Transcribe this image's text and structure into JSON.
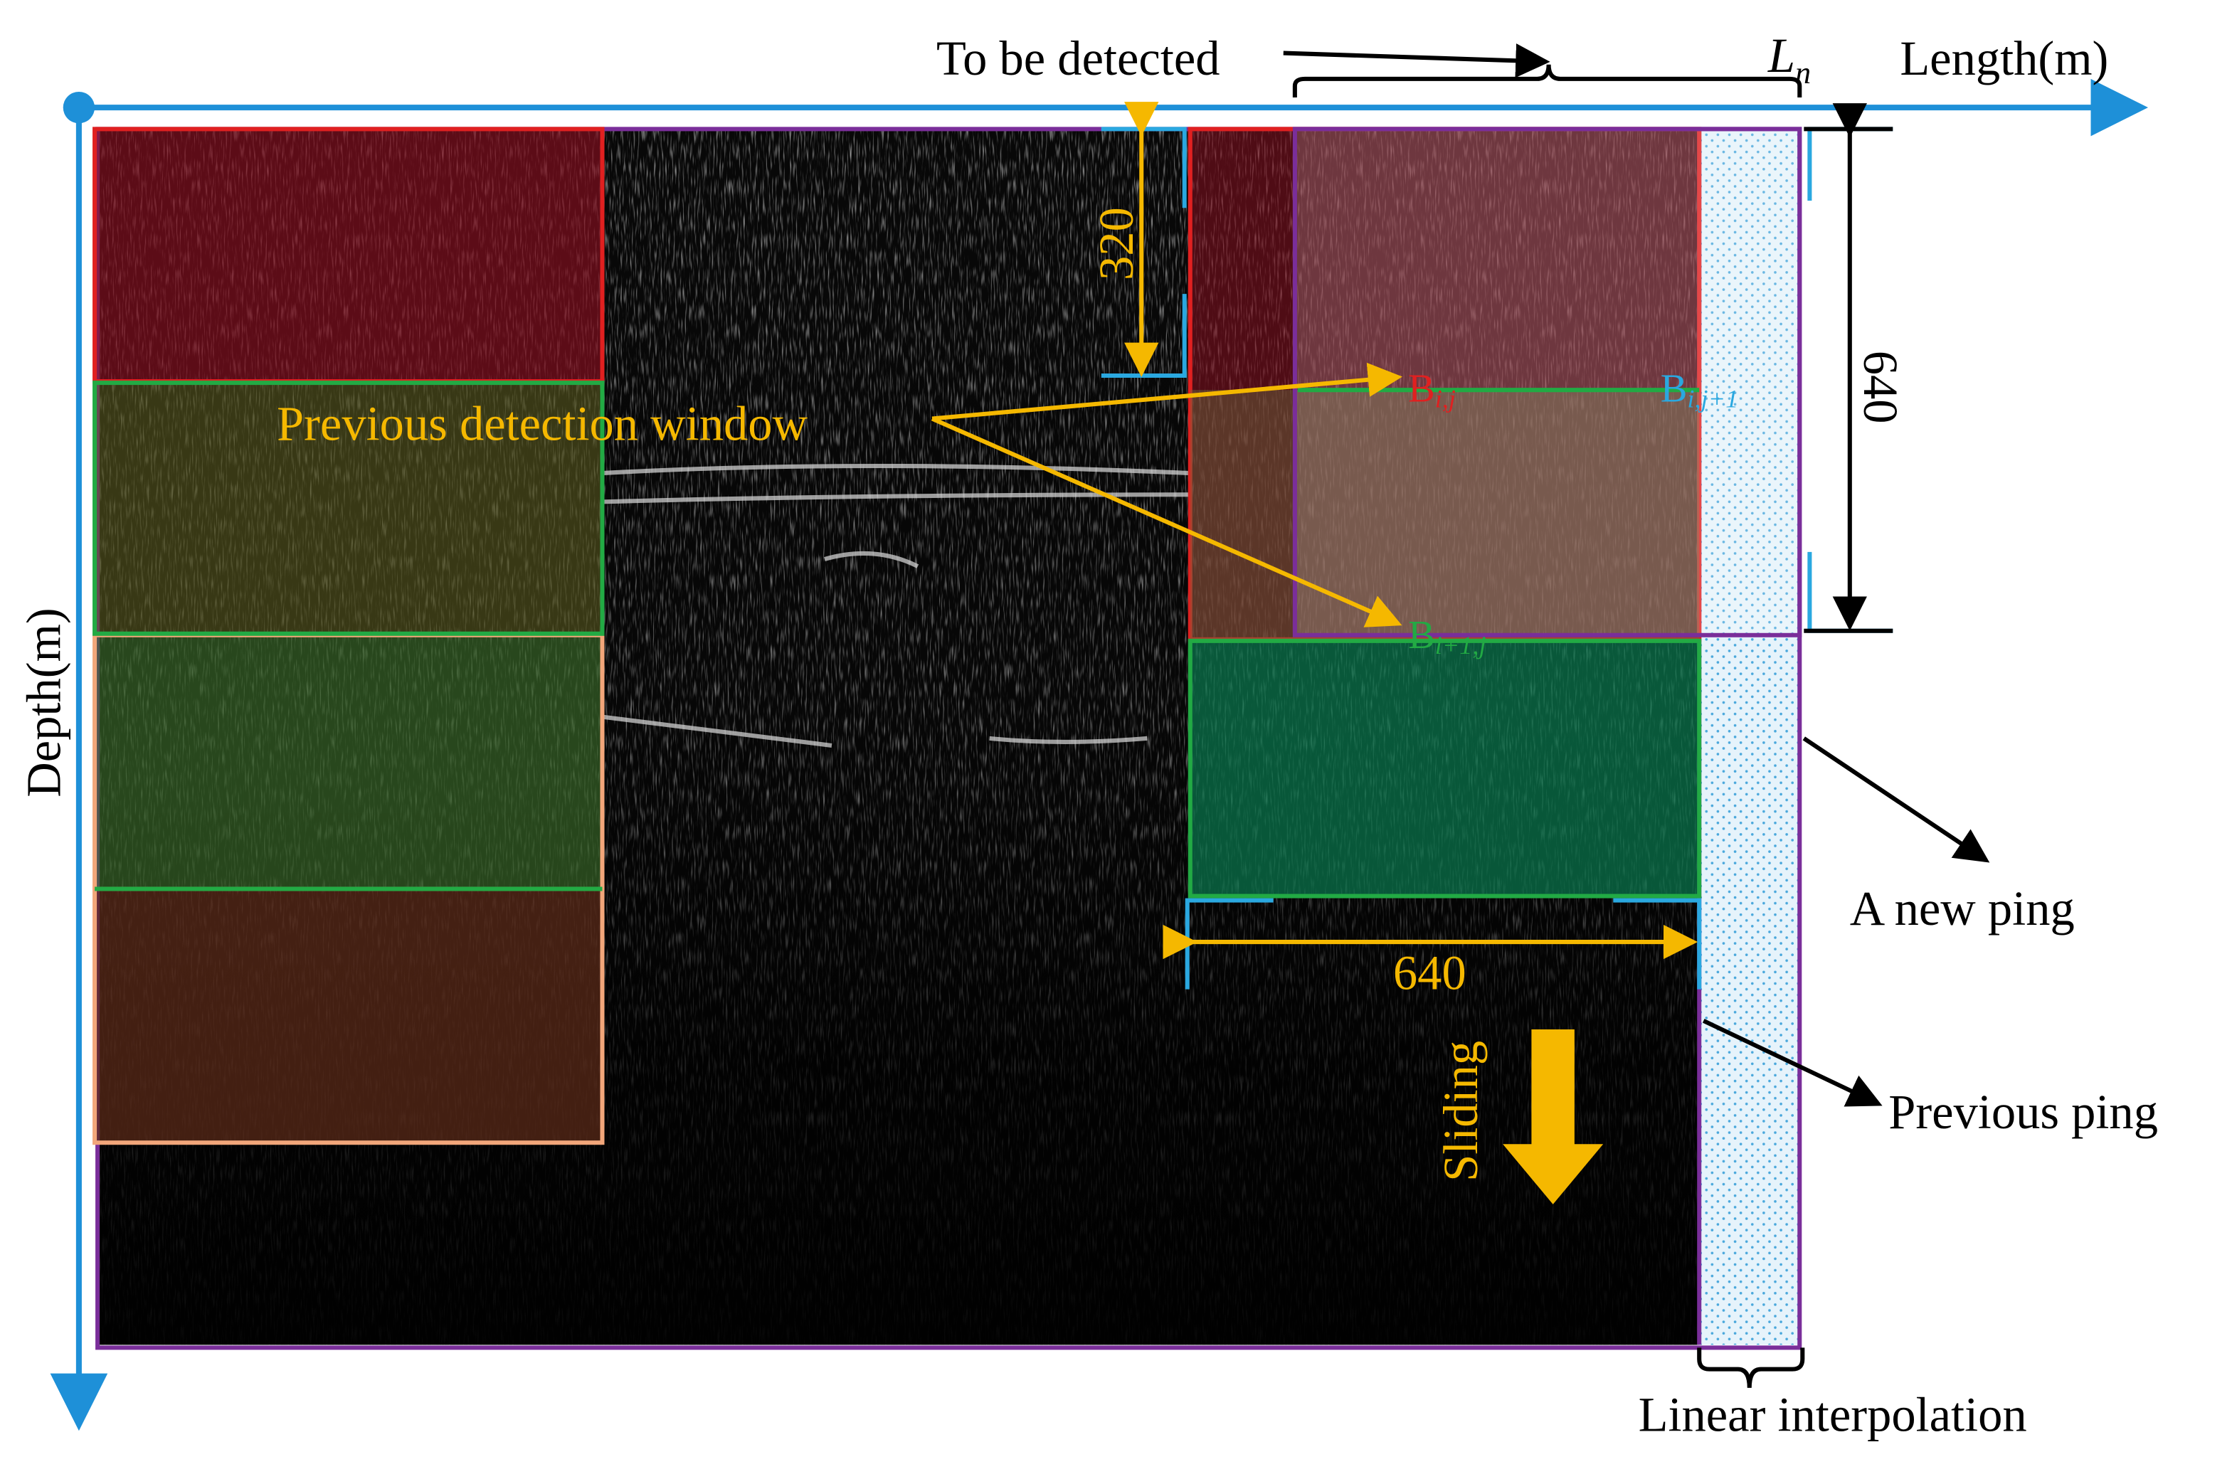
{
  "axes": {
    "x_label": "Length(m)",
    "y_label": "Depth(m)"
  },
  "labels": {
    "to_be_detected": "To be detected",
    "ln": {
      "base": "L",
      "sub": "n"
    },
    "previous_window": "Previous detection window",
    "b_ij": {
      "base": "B",
      "sub": "i,j"
    },
    "b_ij1": {
      "base": "B",
      "sub": "i,j+1"
    },
    "b_i1j": {
      "base": "B",
      "sub": "i+1,j"
    },
    "height_half": 320,
    "height_full": 640,
    "width_full": 640,
    "new_ping": "A new ping",
    "previous_ping": "Previous ping",
    "sliding": "Sliding",
    "linear_interpolation": "Linear interpolation"
  }
}
